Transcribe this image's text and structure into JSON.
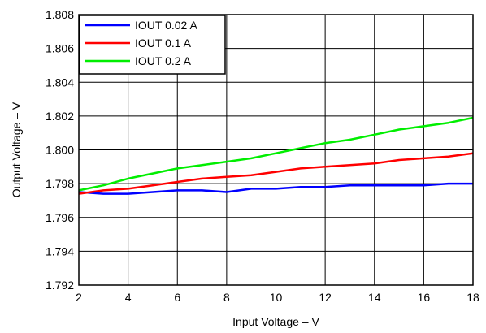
{
  "chart_data": {
    "type": "line",
    "title": "",
    "xlabel": "Input Voltage – V",
    "ylabel": "Output Voltage – V",
    "xlim": [
      2,
      18
    ],
    "ylim": [
      1.792,
      1.808
    ],
    "x_ticks": [
      "2",
      "4",
      "6",
      "8",
      "10",
      "12",
      "14",
      "16",
      "18"
    ],
    "y_ticks": [
      "1.792",
      "1.794",
      "1.796",
      "1.798",
      "1.800",
      "1.802",
      "1.804",
      "1.806",
      "1.808"
    ],
    "grid": true,
    "legend_position": "top-left",
    "series": [
      {
        "name": "IOUT 0.02 A",
        "color": "#0000ff",
        "x": [
          2,
          3,
          4,
          5,
          6,
          7,
          8,
          9,
          10,
          11,
          12,
          13,
          14,
          15,
          16,
          17,
          18
        ],
        "y": [
          1.7975,
          1.7974,
          1.7974,
          1.7975,
          1.7976,
          1.7976,
          1.7975,
          1.7977,
          1.7977,
          1.7978,
          1.7978,
          1.7979,
          1.7979,
          1.7979,
          1.7979,
          1.798,
          1.798
        ]
      },
      {
        "name": "IOUT 0.1 A",
        "color": "#ff0000",
        "x": [
          2,
          3,
          4,
          5,
          6,
          7,
          8,
          9,
          10,
          11,
          12,
          13,
          14,
          15,
          16,
          17,
          18
        ],
        "y": [
          1.7974,
          1.7976,
          1.7977,
          1.7979,
          1.7981,
          1.7983,
          1.7984,
          1.7985,
          1.7987,
          1.7989,
          1.799,
          1.7991,
          1.7992,
          1.7994,
          1.7995,
          1.7996,
          1.7998
        ]
      },
      {
        "name": "IOUT 0.2 A",
        "color": "#00ee00",
        "x": [
          2,
          3,
          4,
          5,
          6,
          7,
          8,
          9,
          10,
          11,
          12,
          13,
          14,
          15,
          16,
          17,
          18
        ],
        "y": [
          1.7976,
          1.7979,
          1.7983,
          1.7986,
          1.7989,
          1.7991,
          1.7993,
          1.7995,
          1.7998,
          1.8001,
          1.8004,
          1.8006,
          1.8009,
          1.8012,
          1.8014,
          1.8016,
          1.8019
        ]
      }
    ]
  }
}
